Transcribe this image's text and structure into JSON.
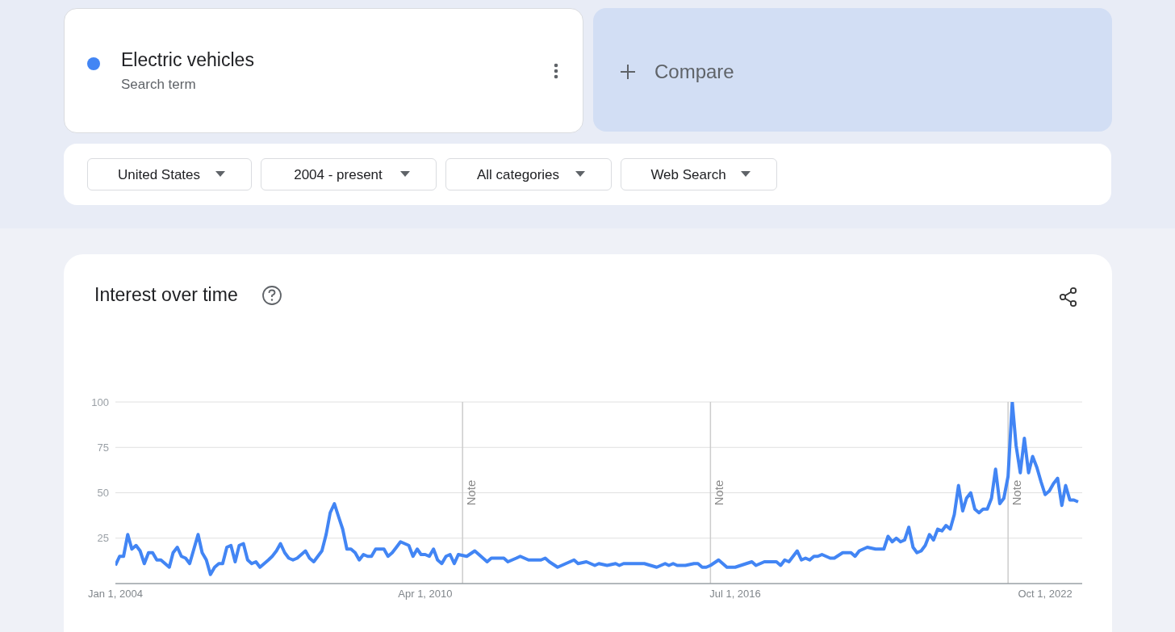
{
  "chart_data": {
    "type": "line",
    "title": "Interest over time",
    "legend": "top left",
    "grid": "y",
    "annotations": [
      "Search term",
      "Compare",
      "United States",
      "2004 - present",
      "All categories",
      "Web Search"
    ],
    "x": [
      "2004-01",
      "2004-02",
      "2004-03",
      "2004-04",
      "2004-05",
      "2004-06",
      "2004-07",
      "2004-08",
      "2004-09",
      "2004-10",
      "2004-11",
      "2004-12",
      "2005-02",
      "2005-03",
      "2005-04",
      "2005-05",
      "2005-06",
      "2005-07",
      "2005-09",
      "2005-10",
      "2005-11",
      "2005-12",
      "2006-01",
      "2006-02",
      "2006-03",
      "2006-04",
      "2006-05",
      "2006-06",
      "2006-07",
      "2006-08",
      "2006-09",
      "2006-10",
      "2006-11",
      "2006-12",
      "2007-02",
      "2007-03",
      "2007-04",
      "2007-05",
      "2007-06",
      "2007-07",
      "2007-08",
      "2007-09",
      "2007-11",
      "2007-12",
      "2008-01",
      "2008-03",
      "2008-04",
      "2008-05",
      "2008-06",
      "2008-07",
      "2008-08",
      "2008-09",
      "2008-10",
      "2008-11",
      "2008-12",
      "2009-01",
      "2009-02",
      "2009-03",
      "2009-04",
      "2009-05",
      "2009-06",
      "2009-07",
      "2009-08",
      "2009-09",
      "2009-10",
      "2009-11",
      "2009-12",
      "2010-01",
      "2010-02",
      "2010-03",
      "2010-04",
      "2010-05",
      "2010-06",
      "2010-07",
      "2010-08",
      "2010-09",
      "2010-10",
      "2010-11",
      "2010-12",
      "2011-02",
      "2011-04",
      "2011-07",
      "2011-08",
      "2011-11",
      "2011-12",
      "2012-02",
      "2012-03",
      "2012-05",
      "2012-08",
      "2012-09",
      "2012-10",
      "2012-12",
      "2013-04",
      "2013-05",
      "2013-07",
      "2013-09",
      "2013-10",
      "2013-12",
      "2014-02",
      "2014-03",
      "2014-04",
      "2014-07",
      "2014-09",
      "2014-12",
      "2015-02",
      "2015-03",
      "2015-04",
      "2015-05",
      "2015-07",
      "2015-09",
      "2015-10",
      "2015-11",
      "2015-12",
      "2016-01",
      "2016-03",
      "2016-05",
      "2016-07",
      "2016-11",
      "2016-12",
      "2017-02",
      "2017-05",
      "2017-06",
      "2017-07",
      "2017-08",
      "2017-10",
      "2017-11",
      "2017-12",
      "2018-01",
      "2018-02",
      "2018-03",
      "2018-04",
      "2018-06",
      "2018-07",
      "2018-09",
      "2018-11",
      "2018-12",
      "2019-01",
      "2019-03",
      "2019-05",
      "2019-07",
      "2019-08",
      "2019-09",
      "2019-10",
      "2019-11",
      "2019-12",
      "2020-01",
      "2020-02",
      "2020-03",
      "2020-04",
      "2020-05",
      "2020-06",
      "2020-07",
      "2020-08",
      "2020-09",
      "2020-10",
      "2020-11",
      "2020-12",
      "2021-01",
      "2021-02",
      "2021-03",
      "2021-04",
      "2021-05",
      "2021-06",
      "2021-07",
      "2021-08",
      "2021-09",
      "2021-10",
      "2021-11",
      "2021-12",
      "2022-01",
      "2022-02",
      "2022-03",
      "2022-04",
      "2022-05",
      "2022-06",
      "2022-07",
      "2022-08",
      "2022-09",
      "2022-10",
      "2022-11",
      "2022-12",
      "2023-01",
      "2023-02",
      "2023-03",
      "2023-04",
      "2023-05",
      "2023-06"
    ],
    "series": [
      {
        "name": "Electric vehicles",
        "color": "#4285f4",
        "values": [
          10,
          15,
          15,
          27,
          19,
          21,
          18,
          11,
          17,
          17,
          13,
          13,
          9,
          17,
          20,
          15,
          14,
          11,
          27,
          17,
          13,
          5,
          9,
          11,
          11,
          20,
          21,
          12,
          21,
          22,
          13,
          11,
          12,
          9,
          13,
          15,
          18,
          22,
          17,
          14,
          13,
          14,
          18,
          14,
          12,
          18,
          27,
          39,
          44,
          37,
          30,
          19,
          19,
          17,
          13,
          16,
          15,
          15,
          19,
          19,
          19,
          15,
          17,
          20,
          23,
          22,
          21,
          15,
          19,
          16,
          16,
          15,
          19,
          13,
          11,
          15,
          16,
          11,
          16,
          15,
          18,
          12,
          14,
          14,
          12,
          14,
          15,
          13,
          13,
          14,
          12,
          9,
          13,
          11,
          12,
          10,
          11,
          10,
          11,
          10,
          11,
          11,
          11,
          9,
          11,
          10,
          11,
          10,
          10,
          11,
          11,
          9,
          9,
          10,
          13,
          9,
          9,
          12,
          10,
          12,
          12,
          10,
          13,
          12,
          18,
          13,
          14,
          13,
          15,
          15,
          16,
          14,
          14,
          17,
          17,
          15,
          18,
          20,
          19,
          19,
          26,
          23,
          25,
          23,
          24,
          31,
          20,
          17,
          18,
          21,
          27,
          24,
          30,
          29,
          32,
          30,
          38,
          54,
          40,
          47,
          50,
          41,
          39,
          41,
          41,
          47,
          63,
          44,
          47,
          59,
          100,
          76,
          61,
          80,
          61,
          70,
          64,
          56,
          49,
          51,
          55,
          58,
          43,
          54,
          46,
          46,
          45
        ]
      }
    ],
    "xlim": [
      "2004-01-01",
      "2023-07-01"
    ],
    "xticks": [
      {
        "value": "2004-01-01",
        "label": "Jan 1, 2004"
      },
      {
        "value": "2010-04-01",
        "label": "Apr 1, 2010"
      },
      {
        "value": "2016-07-01",
        "label": "Jul 1, 2016"
      },
      {
        "value": "2022-10-01",
        "label": "Oct 1, 2022"
      }
    ],
    "ylim": [
      0,
      100
    ],
    "yticks": [
      25,
      50,
      75,
      100
    ],
    "ref_lines": [
      {
        "axis": "x",
        "value": "2011-01-01",
        "label": "Note",
        "color": "#cccccc"
      },
      {
        "axis": "x",
        "value": "2016-01-01",
        "label": "Note",
        "color": "#cccccc"
      },
      {
        "axis": "x",
        "value": "2022-01-01",
        "label": "Note",
        "color": "#cccccc"
      }
    ]
  }
}
